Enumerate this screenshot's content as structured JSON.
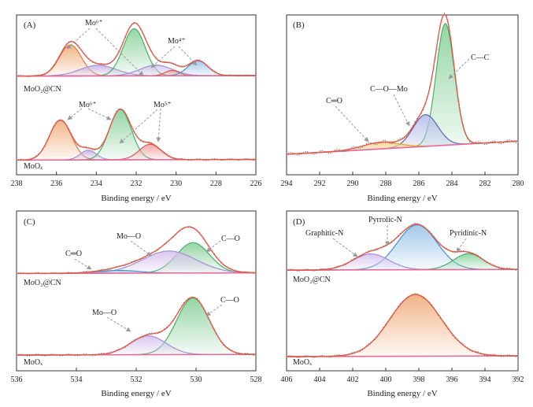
{
  "chart_data": [
    {
      "type": "line",
      "panel": "(A)",
      "xlabel": "Binding energy / eV",
      "xlim": [
        238,
        226
      ],
      "xticks": [
        238,
        236,
        234,
        232,
        230,
        228,
        226
      ],
      "reversed_x": true,
      "samples": [
        {
          "name": "MoO₂@CN",
          "baseline": [
            0.02,
            0.03
          ],
          "peaks": [
            {
              "center": 235.3,
              "height": 0.58,
              "width": 0.55,
              "color": "#f0b080",
              "line": "#e07a3a"
            },
            {
              "center": 233.9,
              "height": 0.2,
              "width": 0.9,
              "color": "#c7b6e6",
              "line": "#a48fd6"
            },
            {
              "center": 232.1,
              "height": 0.88,
              "width": 0.55,
              "color": "#8fd3a0",
              "line": "#48b064"
            },
            {
              "center": 231.0,
              "height": 0.2,
              "width": 0.8,
              "color": "#d6c4ee",
              "line": "#a48fd6"
            },
            {
              "center": 230.2,
              "height": 0.1,
              "width": 0.35,
              "color": "#f3a3a3",
              "line": "#dd5555"
            },
            {
              "center": 228.9,
              "height": 0.28,
              "width": 0.5,
              "color": "#9fc6ea",
              "line": "#4a8fd0"
            }
          ]
        },
        {
          "name": "MoOₓ",
          "baseline": [
            0.02,
            0.03
          ],
          "peaks": [
            {
              "center": 235.8,
              "height": 0.62,
              "width": 0.55,
              "color": "#f0b080",
              "line": "#e07a3a"
            },
            {
              "center": 234.4,
              "height": 0.15,
              "width": 0.4,
              "color": "#c7b6e6",
              "line": "#a48fd6"
            },
            {
              "center": 232.8,
              "height": 0.78,
              "width": 0.55,
              "color": "#8fd3a0",
              "line": "#48b064"
            },
            {
              "center": 231.3,
              "height": 0.24,
              "width": 0.55,
              "color": "#f3a3a3",
              "line": "#dd5555"
            }
          ]
        }
      ],
      "annotations": [
        "Mo⁶⁺",
        "Mo⁴⁺",
        "Mo⁶⁺",
        "Mo⁵⁺"
      ]
    },
    {
      "type": "line",
      "panel": "(B)",
      "xlabel": "Binding energy / eV",
      "xlim": [
        294,
        280
      ],
      "xticks": [
        294,
        292,
        290,
        288,
        286,
        284,
        282,
        280
      ],
      "reversed_x": true,
      "samples": [
        {
          "name": "",
          "baseline": [
            0.0,
            0.1
          ],
          "peaks": [
            {
              "center": 284.4,
              "height": 0.92,
              "width": 0.55,
              "color": "#8fd3a0",
              "line": "#48b064"
            },
            {
              "center": 285.6,
              "height": 0.24,
              "width": 0.75,
              "color": "#b9c0e8",
              "line": "#5a64b8"
            },
            {
              "center": 288.3,
              "height": 0.05,
              "width": 1.1,
              "color": "#f5d08a",
              "line": "#e0a020"
            }
          ]
        }
      ],
      "annotations": [
        "C—C",
        "C—O—Mo",
        "C═O"
      ]
    },
    {
      "type": "line",
      "panel": "(C)",
      "xlabel": "Binding energy / eV",
      "xlim": [
        536,
        528
      ],
      "xticks": [
        536,
        534,
        532,
        530,
        528
      ],
      "reversed_x": true,
      "samples": [
        {
          "name": "MoO₂@CN",
          "baseline": [
            0.01,
            0.02
          ],
          "peaks": [
            {
              "center": 530.1,
              "height": 0.55,
              "width": 0.55,
              "color": "#8fd3a0",
              "line": "#48b064"
            },
            {
              "center": 530.9,
              "height": 0.4,
              "width": 0.9,
              "color": "#d6c4ee",
              "line": "#a48fd6"
            },
            {
              "center": 532.6,
              "height": 0.05,
              "width": 0.7,
              "color": "#9fc6ea",
              "line": "#4a8fd0"
            }
          ]
        },
        {
          "name": "MoOₓ",
          "baseline": [
            0.01,
            0.02
          ],
          "peaks": [
            {
              "center": 530.1,
              "height": 0.78,
              "width": 0.55,
              "color": "#8fd3a0",
              "line": "#48b064"
            },
            {
              "center": 531.6,
              "height": 0.26,
              "width": 0.6,
              "color": "#d6c4ee",
              "line": "#a48fd6"
            }
          ]
        }
      ],
      "annotations": [
        "Mo—O",
        "C—O",
        "C═O",
        "Mo—O",
        "C—O"
      ]
    },
    {
      "type": "line",
      "panel": "(D)",
      "xlabel": "Binding energy / eV",
      "xlim": [
        406,
        392
      ],
      "xticks": [
        406,
        404,
        402,
        400,
        398,
        396,
        394,
        392
      ],
      "reversed_x": true,
      "samples": [
        {
          "name": "MoO₂@CN",
          "baseline": [
            0.02,
            0.03
          ],
          "peaks": [
            {
              "center": 398.1,
              "height": 0.62,
              "width": 1.2,
              "color": "#9fc6ea",
              "line": "#4a8fd0"
            },
            {
              "center": 400.9,
              "height": 0.22,
              "width": 1.1,
              "color": "#d6c4ee",
              "line": "#a48fd6"
            },
            {
              "center": 395.0,
              "height": 0.22,
              "width": 0.9,
              "color": "#8fd3a0",
              "line": "#48b064"
            }
          ]
        },
        {
          "name": "MoOₓ",
          "baseline": [
            0.02,
            0.03
          ],
          "peaks": [
            {
              "center": 398.2,
              "height": 0.8,
              "width": 1.55,
              "color": "#f0b080",
              "line": "#e07a3a"
            }
          ]
        }
      ],
      "annotations": [
        "Pyrrolic-N",
        "Graphitic-N",
        "Pyridinic-N"
      ]
    }
  ],
  "panels": {
    "A": {
      "label": "(A)",
      "xlabel": "Binding energy / eV",
      "ann_mo6_top": "Mo⁶⁺",
      "ann_mo4": "Mo⁴⁺",
      "ann_mo6_bot": "Mo⁶⁺",
      "ann_mo5": "Mo⁵⁺",
      "sample_top": "MoO₂@CN",
      "sample_bot": "MoOₓ"
    },
    "B": {
      "label": "(B)",
      "xlabel": "Binding energy / eV",
      "ann_cc": "C—C",
      "ann_com": "C—O—Mo",
      "ann_co": "C═O"
    },
    "C": {
      "label": "(C)",
      "xlabel": "Binding energy / eV",
      "ann_moo_top": "Mo—O",
      "ann_co_top": "C—O",
      "ann_cdo": "C═O",
      "ann_moo_bot": "Mo—O",
      "ann_co_bot": "C—O",
      "sample_top": "MoO₂@CN",
      "sample_bot": "MoOₓ"
    },
    "D": {
      "label": "(D)",
      "xlabel": "Binding energy / eV",
      "ann_pyrrolic": "Pyrrolic-N",
      "ann_graphitic": "Graphitic-N",
      "ann_pyridinic": "Pyridinic-N",
      "sample_top": "MoO₂@CN",
      "sample_bot": "MoOₓ"
    }
  },
  "styles": {
    "envelope_color": "#e05a4a",
    "data_color": "#777777",
    "baseline_color": "#e86a9a",
    "arrow_color": "#9a9a9a"
  }
}
